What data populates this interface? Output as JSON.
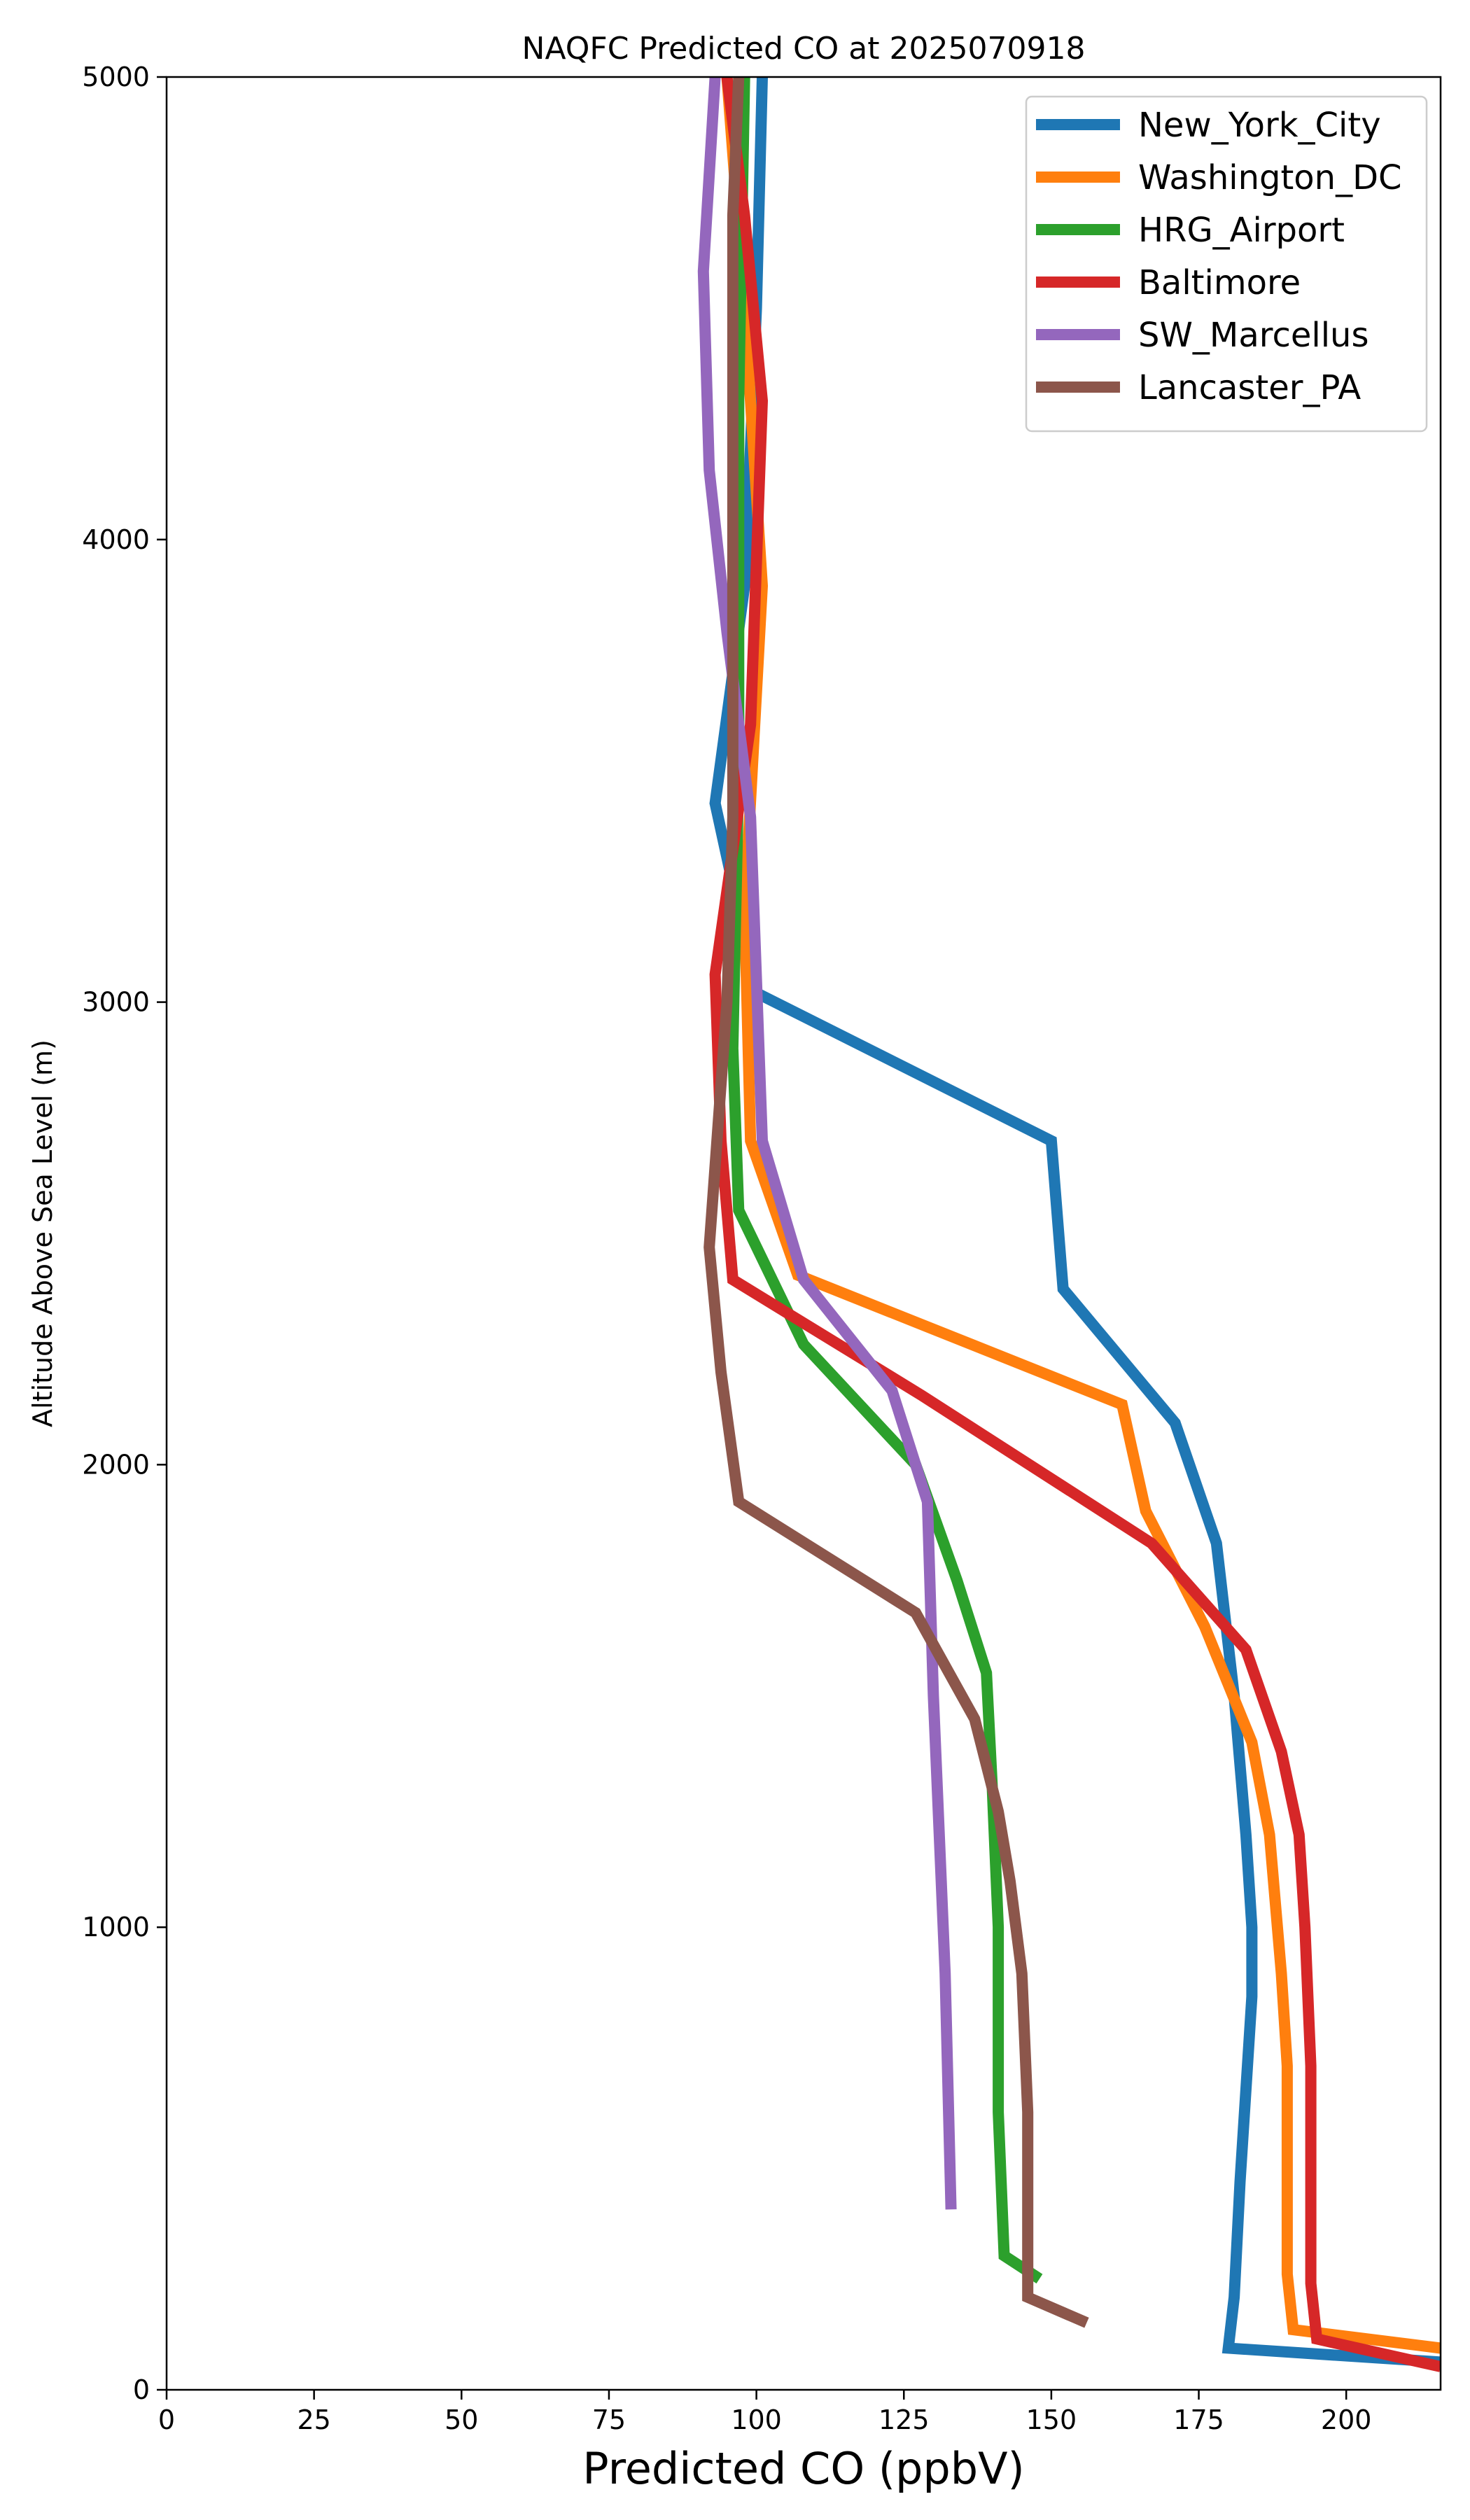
{
  "chart_data": {
    "type": "line",
    "title": "NAQFC Predicted CO at 2025070918",
    "xlabel": "Predicted CO (ppbV)",
    "ylabel": "Altitude Above Sea Level (m)",
    "xlim": [
      0,
      216
    ],
    "ylim": [
      0,
      5000
    ],
    "xticks": [
      0,
      25,
      50,
      75,
      100,
      125,
      150,
      175,
      200
    ],
    "yticks": [
      0,
      1000,
      2000,
      3000,
      4000,
      5000
    ],
    "grid": false,
    "legend": "top-right",
    "series": [
      {
        "name": "New_York_City",
        "color": "#1f77b4",
        "points": [
          [
            216,
            60
          ],
          [
            180,
            90
          ],
          [
            181,
            200
          ],
          [
            182,
            450
          ],
          [
            184,
            850
          ],
          [
            184,
            1000
          ],
          [
            183,
            1200
          ],
          [
            181,
            1500
          ],
          [
            178,
            1830
          ],
          [
            171,
            2090
          ],
          [
            152,
            2380
          ],
          [
            150,
            2700
          ],
          [
            100,
            3020
          ],
          [
            93,
            3430
          ],
          [
            98,
            3900
          ],
          [
            100,
            4500
          ],
          [
            101,
            5000
          ]
        ]
      },
      {
        "name": "Washington_DC",
        "color": "#ff7f0e",
        "points": [
          [
            216,
            90
          ],
          [
            191,
            130
          ],
          [
            190,
            250
          ],
          [
            190,
            700
          ],
          [
            189,
            900
          ],
          [
            187,
            1200
          ],
          [
            184,
            1400
          ],
          [
            176,
            1650
          ],
          [
            166,
            1900
          ],
          [
            162,
            2130
          ],
          [
            107,
            2410
          ],
          [
            99,
            2700
          ],
          [
            98,
            3200
          ],
          [
            101,
            3900
          ],
          [
            98,
            4500
          ],
          [
            95,
            5000
          ]
        ]
      },
      {
        "name": "HRG_Airport",
        "color": "#2ca02c",
        "points": [
          [
            148,
            240
          ],
          [
            142,
            290
          ],
          [
            141,
            600
          ],
          [
            141,
            1000
          ],
          [
            140,
            1300
          ],
          [
            139,
            1550
          ],
          [
            134,
            1750
          ],
          [
            127,
            2000
          ],
          [
            108,
            2260
          ],
          [
            97,
            2550
          ],
          [
            96,
            2900
          ],
          [
            97,
            3500
          ],
          [
            97,
            4300
          ],
          [
            98,
            5000
          ]
        ]
      },
      {
        "name": "Baltimore",
        "color": "#d62728",
        "points": [
          [
            216,
            50
          ],
          [
            195,
            110
          ],
          [
            194,
            230
          ],
          [
            194,
            700
          ],
          [
            193,
            1000
          ],
          [
            192,
            1200
          ],
          [
            189,
            1380
          ],
          [
            183,
            1600
          ],
          [
            167,
            1830
          ],
          [
            128,
            2150
          ],
          [
            96,
            2400
          ],
          [
            94,
            2700
          ],
          [
            93,
            3060
          ],
          [
            99,
            3600
          ],
          [
            101,
            4300
          ],
          [
            98,
            4700
          ],
          [
            95,
            5000
          ]
        ]
      },
      {
        "name": "SW_Marcellus",
        "color": "#9467bd",
        "points": [
          [
            133,
            390
          ],
          [
            132,
            900
          ],
          [
            130,
            1500
          ],
          [
            129,
            1920
          ],
          [
            123,
            2160
          ],
          [
            108,
            2400
          ],
          [
            101,
            2700
          ],
          [
            99,
            3400
          ],
          [
            95,
            3800
          ],
          [
            92,
            4150
          ],
          [
            91,
            4580
          ],
          [
            93,
            5000
          ]
        ]
      },
      {
        "name": "Lancaster_PA",
        "color": "#8c564b",
        "points": [
          [
            156,
            145
          ],
          [
            146,
            200
          ],
          [
            146,
            600
          ],
          [
            145,
            900
          ],
          [
            143,
            1100
          ],
          [
            141,
            1250
          ],
          [
            137,
            1450
          ],
          [
            127,
            1680
          ],
          [
            97,
            1920
          ],
          [
            94,
            2200
          ],
          [
            92,
            2470
          ],
          [
            95,
            3000
          ],
          [
            96,
            3400
          ],
          [
            96,
            3800
          ],
          [
            96,
            4300
          ],
          [
            96,
            4700
          ],
          [
            97,
            5000
          ]
        ]
      }
    ]
  }
}
